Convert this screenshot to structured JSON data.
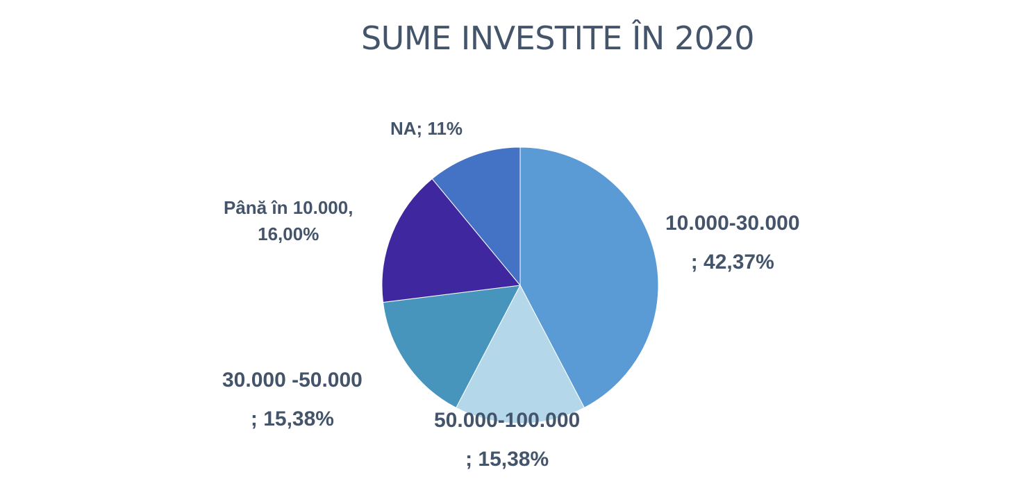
{
  "title": "SUME INVESTITE ÎN 2020",
  "chart_data": {
    "type": "pie",
    "title": "SUME INVESTITE ÎN 2020",
    "start_angle_deg": 0,
    "direction": "clockwise",
    "legend": "none",
    "slices": [
      {
        "label": "10.000-30.000",
        "value": 42.37,
        "display": ";  42,37%",
        "color": "#5b9bd5"
      },
      {
        "label": "50.000-100.000",
        "value": 15.38,
        "display": ";  15,38%",
        "color": "#b4d7ea"
      },
      {
        "label": "30.000  -50.000",
        "value": 15.38,
        "display": ";  15,38%",
        "color": "#4794bd"
      },
      {
        "label": "Până în 10.000,",
        "value": 16.0,
        "display": "16,00%",
        "color": "#3f27a0"
      },
      {
        "label": "NA",
        "value": 11,
        "display": "NA;  11%",
        "color": "#4472c4"
      }
    ]
  }
}
